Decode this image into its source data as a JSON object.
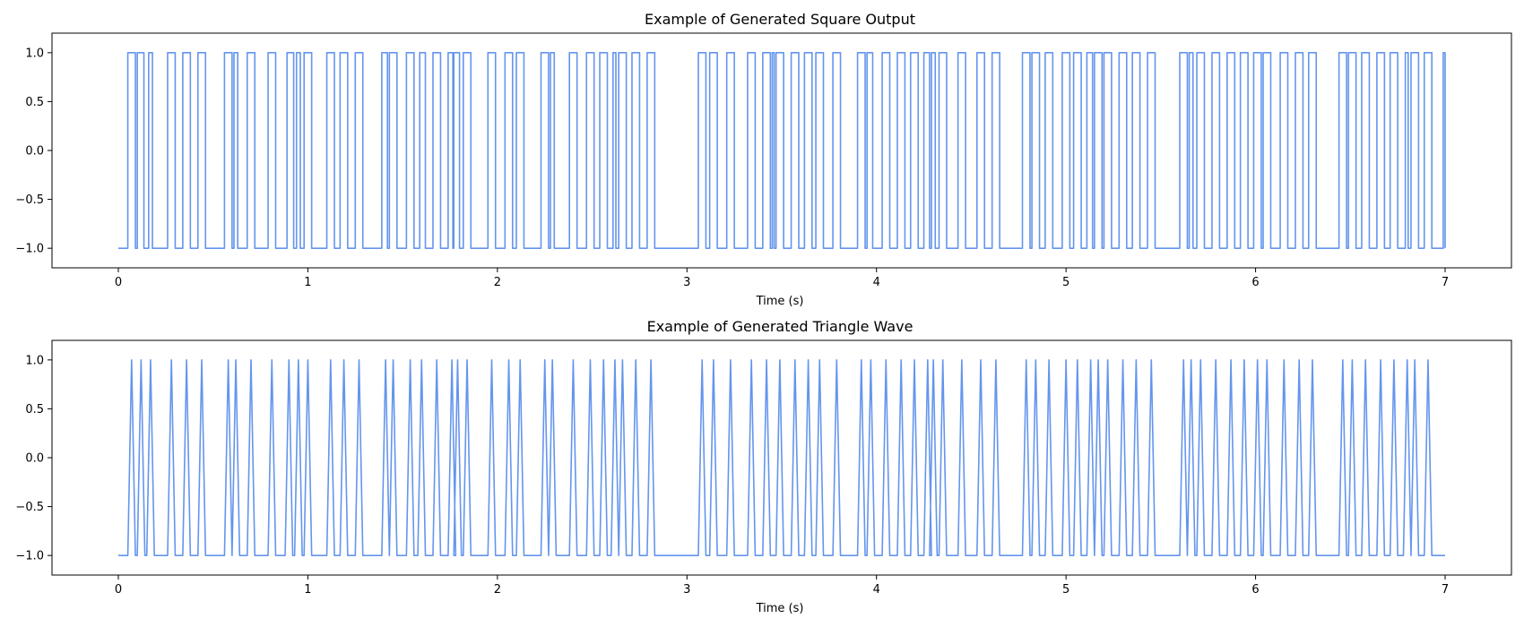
{
  "chart_data": [
    {
      "type": "line",
      "title": "Example of Generated Square Output",
      "xlabel": "Time (s)",
      "ylabel": "",
      "xlim": [
        -0.35,
        7.35
      ],
      "ylim": [
        -1.2,
        1.2
      ],
      "xticks": [
        0,
        1,
        2,
        3,
        4,
        5,
        6,
        7
      ],
      "xtick_labels": [
        "0",
        "1",
        "2",
        "3",
        "4",
        "5",
        "6",
        "7"
      ],
      "yticks": [
        1.0,
        0.5,
        0.0,
        -0.5,
        -1.0
      ],
      "ytick_labels": [
        "1.0",
        "0.5",
        "0.0",
        "−0.5",
        "−1.0"
      ],
      "grid": false,
      "line_color": "#6495ED",
      "series": [
        {
          "waveform": "square",
          "high_pulses": [
            [
              0.05,
              0.09
            ],
            [
              0.1,
              0.135
            ],
            [
              0.16,
              0.18
            ],
            [
              0.26,
              0.3
            ],
            [
              0.34,
              0.38
            ],
            [
              0.42,
              0.46
            ],
            [
              0.56,
              0.6
            ],
            [
              0.61,
              0.63
            ],
            [
              0.68,
              0.72
            ],
            [
              0.79,
              0.83
            ],
            [
              0.89,
              0.925
            ],
            [
              0.94,
              0.96
            ],
            [
              0.98,
              1.02
            ],
            [
              1.1,
              1.14
            ],
            [
              1.17,
              1.21
            ],
            [
              1.25,
              1.29
            ],
            [
              1.39,
              1.42
            ],
            [
              1.43,
              1.47
            ],
            [
              1.52,
              1.56
            ],
            [
              1.59,
              1.62
            ],
            [
              1.66,
              1.7
            ],
            [
              1.74,
              1.765
            ],
            [
              1.77,
              1.8
            ],
            [
              1.82,
              1.86
            ],
            [
              1.95,
              1.99
            ],
            [
              2.04,
              2.08
            ],
            [
              2.1,
              2.14
            ],
            [
              2.23,
              2.27
            ],
            [
              2.28,
              2.3
            ],
            [
              2.38,
              2.42
            ],
            [
              2.47,
              2.51
            ],
            [
              2.54,
              2.58
            ],
            [
              2.61,
              2.625
            ],
            [
              2.64,
              2.68
            ],
            [
              2.71,
              2.75
            ],
            [
              2.79,
              2.83
            ],
            [
              3.06,
              3.1
            ],
            [
              3.12,
              3.16
            ],
            [
              3.21,
              3.25
            ],
            [
              3.32,
              3.36
            ],
            [
              3.4,
              3.44
            ],
            [
              3.45,
              3.46
            ],
            [
              3.47,
              3.51
            ],
            [
              3.55,
              3.59
            ],
            [
              3.62,
              3.66
            ],
            [
              3.68,
              3.72
            ],
            [
              3.77,
              3.81
            ],
            [
              3.9,
              3.94
            ],
            [
              3.95,
              3.98
            ],
            [
              4.03,
              4.07
            ],
            [
              4.11,
              4.15
            ],
            [
              4.18,
              4.22
            ],
            [
              4.25,
              4.28
            ],
            [
              4.29,
              4.31
            ],
            [
              4.33,
              4.37
            ],
            [
              4.43,
              4.47
            ],
            [
              4.53,
              4.57
            ],
            [
              4.61,
              4.65
            ],
            [
              4.77,
              4.81
            ],
            [
              4.82,
              4.86
            ],
            [
              4.89,
              4.93
            ],
            [
              4.98,
              5.02
            ],
            [
              5.04,
              5.08
            ],
            [
              5.11,
              5.14
            ],
            [
              5.15,
              5.19
            ],
            [
              5.2,
              5.24
            ],
            [
              5.28,
              5.32
            ],
            [
              5.35,
              5.39
            ],
            [
              5.43,
              5.47
            ],
            [
              5.6,
              5.64
            ],
            [
              5.65,
              5.67
            ],
            [
              5.69,
              5.73
            ],
            [
              5.77,
              5.81
            ],
            [
              5.85,
              5.89
            ],
            [
              5.92,
              5.96
            ],
            [
              5.99,
              6.03
            ],
            [
              6.04,
              6.08
            ],
            [
              6.13,
              6.17
            ],
            [
              6.21,
              6.25
            ],
            [
              6.28,
              6.32
            ],
            [
              6.44,
              6.48
            ],
            [
              6.49,
              6.53
            ],
            [
              6.56,
              6.6
            ],
            [
              6.64,
              6.68
            ],
            [
              6.71,
              6.75
            ],
            [
              6.79,
              6.805
            ],
            [
              6.82,
              6.86
            ],
            [
              6.89,
              6.93
            ],
            [
              6.99,
              7.0
            ]
          ]
        }
      ]
    },
    {
      "type": "line",
      "title": "Example of Generated Triangle Wave",
      "xlabel": "Time (s)",
      "ylabel": "",
      "xlim": [
        -0.35,
        7.35
      ],
      "ylim": [
        -1.2,
        1.2
      ],
      "xticks": [
        0,
        1,
        2,
        3,
        4,
        5,
        6,
        7
      ],
      "xtick_labels": [
        "0",
        "1",
        "2",
        "3",
        "4",
        "5",
        "6",
        "7"
      ],
      "yticks": [
        1.0,
        0.5,
        0.0,
        -0.5,
        -1.0
      ],
      "ytick_labels": [
        "1.0",
        "0.5",
        "0.0",
        "−0.5",
        "−1.0"
      ],
      "grid": false,
      "line_color": "#6495ED",
      "series": [
        {
          "waveform": "triangle",
          "peaks": [
            0.07,
            0.12,
            0.17,
            0.28,
            0.36,
            0.44,
            0.58,
            0.62,
            0.7,
            0.81,
            0.9,
            0.95,
            1.0,
            1.12,
            1.19,
            1.27,
            1.41,
            1.45,
            1.54,
            1.6,
            1.68,
            1.76,
            1.79,
            1.84,
            1.97,
            2.06,
            2.12,
            2.25,
            2.29,
            2.4,
            2.49,
            2.56,
            2.62,
            2.66,
            2.73,
            2.81,
            3.08,
            3.14,
            3.23,
            3.34,
            3.42,
            3.49,
            3.57,
            3.64,
            3.7,
            3.79,
            3.92,
            3.97,
            4.05,
            4.13,
            4.2,
            4.27,
            4.3,
            4.35,
            4.45,
            4.55,
            4.63,
            4.79,
            4.84,
            4.91,
            5.0,
            5.06,
            5.13,
            5.17,
            5.22,
            5.3,
            5.37,
            5.45,
            5.62,
            5.66,
            5.71,
            5.79,
            5.87,
            5.94,
            6.01,
            6.06,
            6.15,
            6.23,
            6.3,
            6.46,
            6.51,
            6.58,
            6.66,
            6.73,
            6.8,
            6.84,
            6.91
          ],
          "half_width": 0.02
        }
      ]
    }
  ]
}
